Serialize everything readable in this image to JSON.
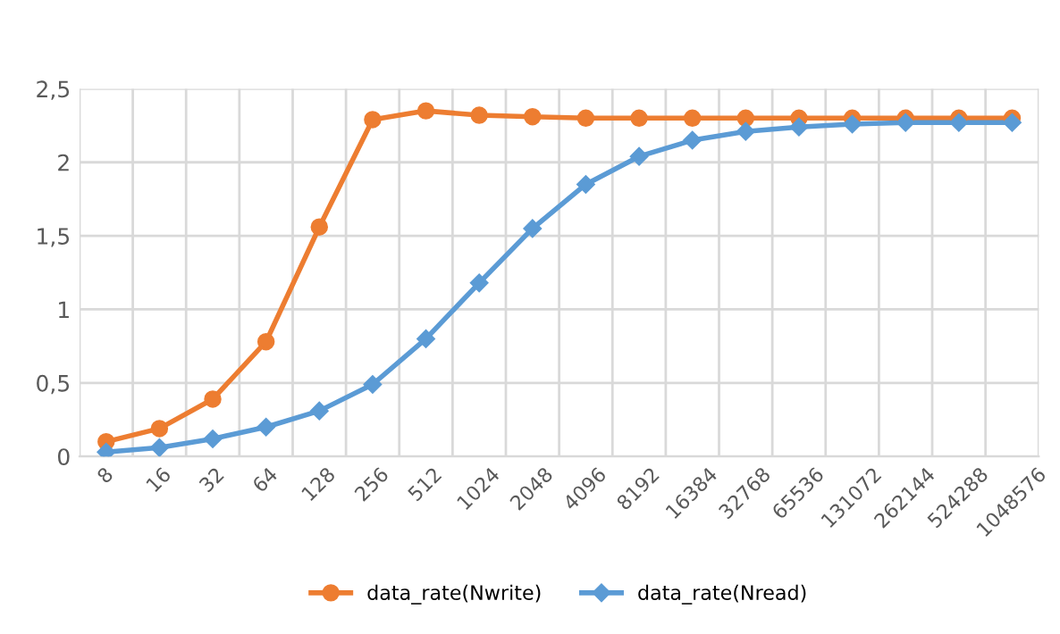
{
  "chart_data": {
    "type": "line",
    "categories": [
      "8",
      "16",
      "32",
      "64",
      "128",
      "256",
      "512",
      "1024",
      "2048",
      "4096",
      "8192",
      "16384",
      "32768",
      "65536",
      "131072",
      "262144",
      "524288",
      "1048576"
    ],
    "series": [
      {
        "name": "data_rate(Nwrite)",
        "color": "#ed7d31",
        "marker": "circle",
        "values": [
          0.1,
          0.19,
          0.39,
          0.78,
          1.56,
          2.29,
          2.35,
          2.32,
          2.31,
          2.3,
          2.3,
          2.3,
          2.3,
          2.3,
          2.3,
          2.3,
          2.3,
          2.3
        ]
      },
      {
        "name": "data_rate(Nread)",
        "color": "#5b9bd5",
        "marker": "diamond",
        "values": [
          0.03,
          0.06,
          0.12,
          0.2,
          0.31,
          0.49,
          0.8,
          1.18,
          1.55,
          1.85,
          2.04,
          2.15,
          2.21,
          2.24,
          2.26,
          2.27,
          2.27,
          2.27
        ]
      }
    ],
    "ylim": [
      0,
      2.5
    ],
    "yticks": [
      0,
      {
        "value": 0.5,
        "label": "0,5"
      },
      1,
      {
        "value": 1.5,
        "label": "1,5"
      },
      2,
      {
        "value": 2.5,
        "label": "2,5"
      }
    ],
    "grid": true,
    "legend": "bottom",
    "line_style": "solid"
  }
}
